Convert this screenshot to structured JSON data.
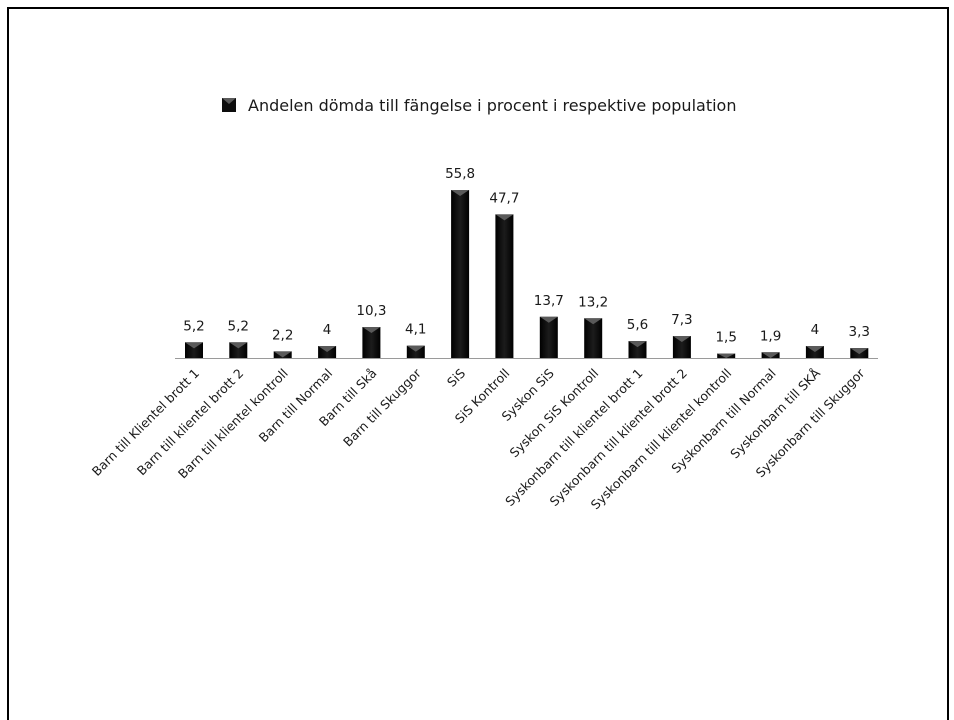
{
  "chart_data": {
    "type": "bar",
    "legend": {
      "label": "Andelen dömda till fängelse i procent i respektive population",
      "position": "top"
    },
    "categories": [
      "Barn till Klientel brott 1",
      "Barn till klientel brott 2",
      "Barn till klientel kontroll",
      "Barn till Normal",
      "Barn till Skå",
      "Barn till Skuggor",
      "SiS",
      "SiS Kontroll",
      "Syskon SiS",
      "Syskon SiS Kontroll",
      "Syskonbarn till klientel brott 1",
      "Syskonbarn till klientel brott 2",
      "Syskonbarn till klientel kontroll",
      "Syskonbarn till Normal",
      "Syskonbarn till SKÅ",
      "Syskonbarn till Skuggor"
    ],
    "series": [
      {
        "name": "Andelen dömda till fängelse i procent i respektive population",
        "values": [
          5.2,
          5.2,
          2.2,
          4,
          10.3,
          4.1,
          55.8,
          47.7,
          13.7,
          13.2,
          5.6,
          7.3,
          1.5,
          1.9,
          4,
          3.3
        ],
        "value_labels": [
          "5,2",
          "5,2",
          "2,2",
          "4",
          "10,3",
          "4,1",
          "55,8",
          "47,7",
          "13,7",
          "13,2",
          "5,6",
          "7,3",
          "1,5",
          "1,9",
          "4",
          "3,3"
        ],
        "color": "#0d0d0d"
      }
    ],
    "ylim": [
      0,
      55.8
    ],
    "grid": false
  }
}
